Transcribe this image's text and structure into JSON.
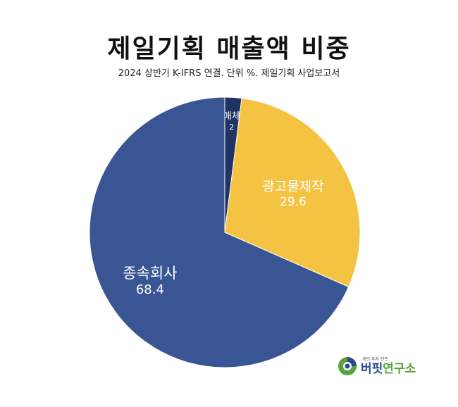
{
  "chart_data": {
    "type": "pie",
    "title": "제일기획 매출액 비중",
    "subtitle": "2024 상반기 K-IFRS 연결. 단위 %. 제일기획 사업보고서",
    "slices": [
      {
        "label": "매체",
        "value": 2,
        "color": "#1f3364"
      },
      {
        "label": "광고물제작",
        "value": 29.6,
        "color": "#f5c342"
      },
      {
        "label": "종속회사",
        "value": 68.4,
        "color": "#3a5593"
      }
    ],
    "legend": "none"
  },
  "logo": {
    "tagline": "개인 투자 인프",
    "name_part1": "버핏",
    "name_part2": "연구소",
    "colors": {
      "blue": "#2b4a8c",
      "green": "#5aa33b"
    }
  }
}
